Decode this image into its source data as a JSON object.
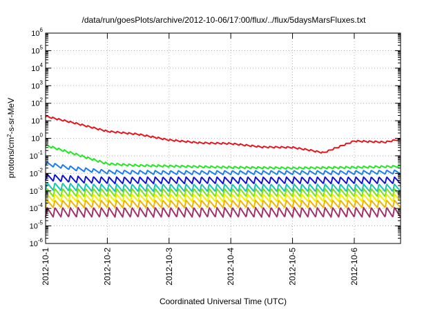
{
  "chart_data": {
    "type": "line",
    "title": "/data/run/goesPlots/archive/2012-10-06/17:00/flux/../flux/5daysMarsFluxes.txt",
    "xlabel": "Coordinated Universal Time (UTC)",
    "ylabel": "protons/cm²-s-sr-MeV",
    "yscale": "log",
    "ylim_exponents": [
      -6,
      6
    ],
    "y_tick_exponents": [
      -6,
      -5,
      -4,
      -3,
      -2,
      -1,
      0,
      1,
      2,
      3,
      4,
      5,
      6
    ],
    "x_tick_labels": [
      "2012-10-1",
      "2012-10-2",
      "2012-10-3",
      "2012-10-4",
      "2012-10-5",
      "2012-10-6"
    ],
    "xlim_days": [
      0,
      5.75
    ],
    "grid": true,
    "series": [
      {
        "color": "#e8141c",
        "x": [
          0,
          0.5,
          1.0,
          1.5,
          2.0,
          2.5,
          3.0,
          3.5,
          4.0,
          4.25,
          4.5,
          5.0,
          5.5,
          5.75
        ],
        "y": [
          18,
          7,
          2.5,
          1.7,
          0.8,
          0.55,
          0.5,
          0.32,
          0.3,
          0.22,
          0.15,
          0.7,
          0.6,
          0.9
        ]
      },
      {
        "color": "#22e822",
        "x": [
          0,
          0.5,
          1.0,
          1.5,
          2.0,
          3.0,
          4.0,
          5.0,
          5.75
        ],
        "y": [
          0.4,
          0.12,
          0.035,
          0.028,
          0.026,
          0.022,
          0.02,
          0.022,
          0.025
        ]
      },
      {
        "color": "#1a7df0",
        "x": [
          0,
          0.5,
          1.0,
          2.0,
          3.0,
          4.0,
          5.0,
          5.75
        ],
        "y": [
          0.035,
          0.018,
          0.012,
          0.011,
          0.011,
          0.011,
          0.011,
          0.012
        ]
      },
      {
        "color": "#1010d8",
        "x": [
          0,
          0.5,
          1.0,
          2.0,
          3.0,
          4.0,
          5.0,
          5.75
        ],
        "y": [
          0.006,
          0.0045,
          0.004,
          0.004,
          0.004,
          0.004,
          0.004,
          0.004
        ]
      },
      {
        "color": "#17c7b0",
        "x": [
          0,
          0.5,
          1.0,
          2.0,
          3.0,
          4.0,
          5.0,
          5.75
        ],
        "y": [
          0.0018,
          0.0016,
          0.0015,
          0.0015,
          0.0015,
          0.0015,
          0.0015,
          0.0015
        ]
      },
      {
        "color": "#7fe015",
        "x": [
          0,
          0.5,
          1.0,
          2.0,
          3.0,
          4.0,
          5.0,
          5.75
        ],
        "y": [
          0.0008,
          0.0008,
          0.0008,
          0.0008,
          0.0008,
          0.0008,
          0.0008,
          0.0008
        ]
      },
      {
        "color": "#f0f000",
        "x": [
          0,
          0.5,
          1.0,
          2.0,
          3.0,
          4.0,
          5.0,
          5.75
        ],
        "y": [
          0.0004,
          0.0004,
          0.0004,
          0.0004,
          0.0004,
          0.0004,
          0.0004,
          0.0004
        ]
      },
      {
        "color": "#f0b400",
        "x": [
          0,
          0.5,
          1.0,
          2.0,
          3.0,
          4.0,
          5.0,
          5.75
        ],
        "y": [
          0.00018,
          0.00018,
          0.00018,
          0.00018,
          0.00018,
          0.00018,
          0.00018,
          0.00018
        ]
      },
      {
        "color": "#a0306a",
        "x": [
          0,
          0.5,
          1.0,
          2.0,
          3.0,
          4.0,
          5.0,
          5.75
        ],
        "y": [
          6e-05,
          6e-05,
          6e-05,
          6e-05,
          6e-05,
          6e-05,
          6e-05,
          6e-05
        ]
      }
    ]
  }
}
